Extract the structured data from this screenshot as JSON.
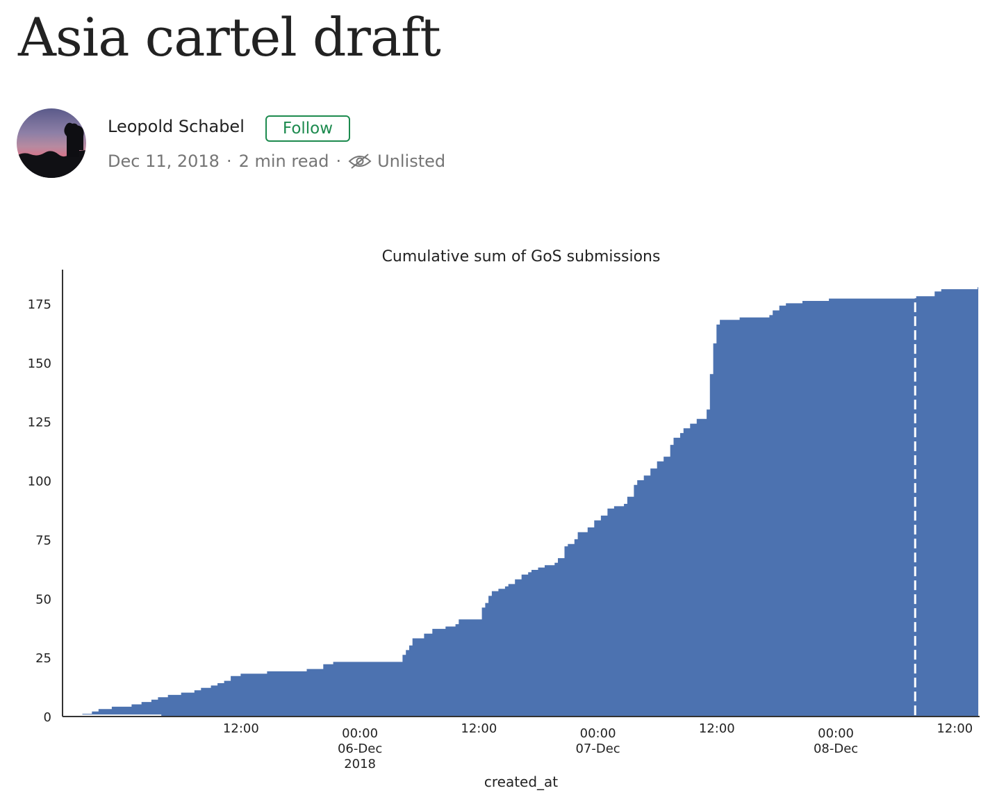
{
  "article": {
    "title": "Asia cartel draft",
    "author": "Leopold Schabel",
    "follow_label": "Follow",
    "date": "Dec 11, 2018",
    "read_time": "2 min read",
    "separator": "·",
    "visibility": "Unlisted",
    "visibility_icon": "eye-slash-icon"
  },
  "colors": {
    "follow_green": "#1c8a4e",
    "area_fill": "#4c72b0",
    "marker_line": "#ffffff"
  },
  "chart_data": {
    "type": "area",
    "title": "Cumulative sum of GoS submissions",
    "xlabel": "created_at",
    "ylabel": "",
    "x_start": "2018-12-05T04:00",
    "ylim": [
      0,
      190
    ],
    "yticks": [
      0,
      25,
      50,
      75,
      100,
      125,
      150,
      175
    ],
    "xticks": [
      {
        "x": "2018-12-05T12:00",
        "lines": [
          "12:00"
        ]
      },
      {
        "x": "2018-12-06T00:00",
        "lines": [
          "00:00",
          "06-Dec",
          "2018"
        ]
      },
      {
        "x": "2018-12-06T12:00",
        "lines": [
          "12:00"
        ]
      },
      {
        "x": "2018-12-07T00:00",
        "lines": [
          "00:00",
          "07-Dec"
        ]
      },
      {
        "x": "2018-12-07T12:00",
        "lines": [
          "12:00"
        ]
      },
      {
        "x": "2018-12-08T00:00",
        "lines": [
          "00:00",
          "08-Dec"
        ]
      },
      {
        "x": "2018-12-08T12:00",
        "lines": [
          "12:00"
        ]
      }
    ],
    "xlim": [
      "2018-12-04T18:00",
      "2018-12-08T14:30"
    ],
    "marker_x": "2018-12-08T08:00",
    "grid": false,
    "legend": "none",
    "series": [
      {
        "points": [
          [
            "2018-12-04T20:00",
            1
          ],
          [
            "2018-12-04T21:00",
            2
          ],
          [
            "2018-12-04T21:40",
            3
          ],
          [
            "2018-12-04T23:00",
            4
          ],
          [
            "2018-12-05T01:00",
            5
          ],
          [
            "2018-12-05T02:00",
            6
          ],
          [
            "2018-12-05T03:00",
            7
          ],
          [
            "2018-12-05T03:40",
            8
          ],
          [
            "2018-12-05T04:40",
            9
          ],
          [
            "2018-12-05T06:00",
            10
          ],
          [
            "2018-12-05T07:20",
            11
          ],
          [
            "2018-12-05T08:00",
            12
          ],
          [
            "2018-12-05T09:00",
            13
          ],
          [
            "2018-12-05T09:40",
            14
          ],
          [
            "2018-12-05T10:20",
            15
          ],
          [
            "2018-12-05T11:00",
            17
          ],
          [
            "2018-12-05T12:00",
            18
          ],
          [
            "2018-12-05T14:40",
            19
          ],
          [
            "2018-12-05T18:40",
            20
          ],
          [
            "2018-12-05T20:20",
            22
          ],
          [
            "2018-12-05T21:20",
            23
          ],
          [
            "2018-12-06T04:00",
            23
          ],
          [
            "2018-12-06T04:20",
            26
          ],
          [
            "2018-12-06T04:40",
            28
          ],
          [
            "2018-12-06T05:00",
            30
          ],
          [
            "2018-12-06T05:20",
            33
          ],
          [
            "2018-12-06T06:30",
            35
          ],
          [
            "2018-12-06T07:20",
            37
          ],
          [
            "2018-12-06T07:40",
            37
          ],
          [
            "2018-12-06T08:40",
            38
          ],
          [
            "2018-12-06T09:40",
            39
          ],
          [
            "2018-12-06T10:00",
            41
          ],
          [
            "2018-12-06T10:20",
            41
          ],
          [
            "2018-12-06T12:00",
            41
          ],
          [
            "2018-12-06T12:20",
            46
          ],
          [
            "2018-12-06T12:40",
            48
          ],
          [
            "2018-12-06T13:00",
            51
          ],
          [
            "2018-12-06T13:20",
            53
          ],
          [
            "2018-12-06T14:00",
            54
          ],
          [
            "2018-12-06T14:40",
            55
          ],
          [
            "2018-12-06T15:00",
            56
          ],
          [
            "2018-12-06T15:40",
            58
          ],
          [
            "2018-12-06T16:20",
            60
          ],
          [
            "2018-12-06T17:00",
            61
          ],
          [
            "2018-12-06T17:20",
            62
          ],
          [
            "2018-12-06T18:00",
            63
          ],
          [
            "2018-12-06T18:40",
            64
          ],
          [
            "2018-12-06T19:40",
            65
          ],
          [
            "2018-12-06T20:00",
            67
          ],
          [
            "2018-12-06T20:40",
            72
          ],
          [
            "2018-12-06T21:00",
            73
          ],
          [
            "2018-12-06T21:40",
            75
          ],
          [
            "2018-12-06T22:00",
            78
          ],
          [
            "2018-12-06T23:00",
            80
          ],
          [
            "2018-12-06T23:40",
            83
          ],
          [
            "2018-12-07T00:20",
            85
          ],
          [
            "2018-12-07T01:00",
            88
          ],
          [
            "2018-12-07T01:40",
            89
          ],
          [
            "2018-12-07T02:40",
            90
          ],
          [
            "2018-12-07T03:00",
            93
          ],
          [
            "2018-12-07T03:40",
            98
          ],
          [
            "2018-12-07T04:00",
            100
          ],
          [
            "2018-12-07T04:40",
            102
          ],
          [
            "2018-12-07T05:20",
            105
          ],
          [
            "2018-12-07T06:00",
            108
          ],
          [
            "2018-12-07T06:40",
            110
          ],
          [
            "2018-12-07T07:20",
            115
          ],
          [
            "2018-12-07T07:40",
            118
          ],
          [
            "2018-12-07T08:20",
            120
          ],
          [
            "2018-12-07T08:40",
            122
          ],
          [
            "2018-12-07T09:20",
            124
          ],
          [
            "2018-12-07T10:00",
            126
          ],
          [
            "2018-12-07T10:40",
            126
          ],
          [
            "2018-12-07T11:00",
            130
          ],
          [
            "2018-12-07T11:20",
            145
          ],
          [
            "2018-12-07T11:40",
            158
          ],
          [
            "2018-12-07T12:00",
            166
          ],
          [
            "2018-12-07T12:20",
            168
          ],
          [
            "2018-12-07T14:20",
            169
          ],
          [
            "2018-12-07T17:20",
            170
          ],
          [
            "2018-12-07T17:40",
            172
          ],
          [
            "2018-12-07T18:20",
            174
          ],
          [
            "2018-12-07T19:00",
            175
          ],
          [
            "2018-12-07T20:40",
            176
          ],
          [
            "2018-12-07T23:20",
            177
          ],
          [
            "2018-12-08T08:00",
            178
          ],
          [
            "2018-12-08T10:00",
            180
          ],
          [
            "2018-12-08T10:40",
            181
          ],
          [
            "2018-12-08T14:20",
            182
          ]
        ]
      }
    ]
  }
}
